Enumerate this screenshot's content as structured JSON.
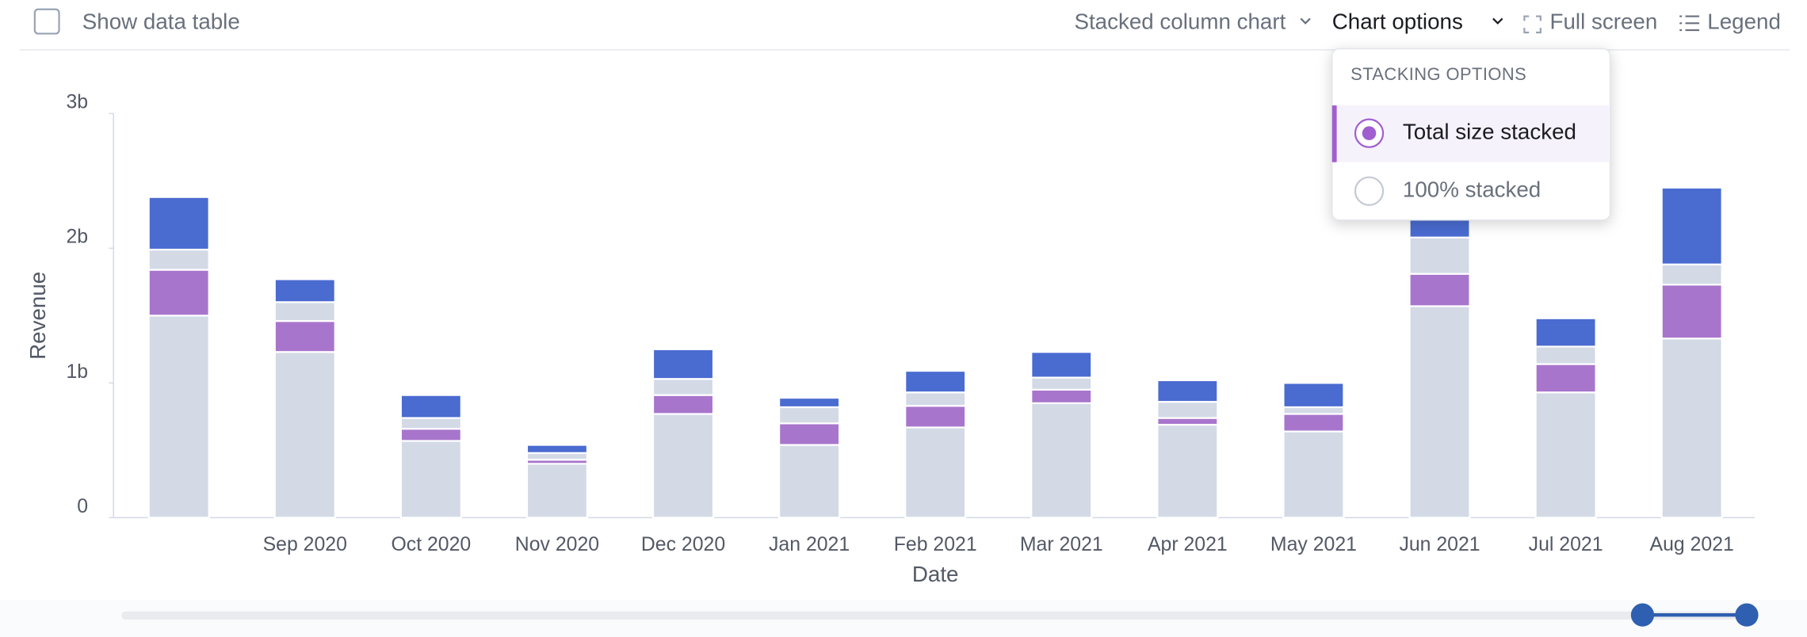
{
  "toolbar": {
    "show_data_table": "Show data table",
    "chart_type": "Stacked column chart",
    "chart_options": "Chart options",
    "full_screen": "Full screen",
    "legend": "Legend"
  },
  "menu": {
    "heading": "STACKING OPTIONS",
    "options": [
      "Total size stacked",
      "100% stacked"
    ]
  },
  "chart_data": {
    "type": "stacked-bar",
    "xlabel": "Date",
    "ylabel": "Revenue",
    "categories": [
      null,
      "Sep 2020",
      "Oct 2020",
      "Nov 2020",
      "Dec 2020",
      "Jan 2021",
      "Feb 2021",
      "Mar 2021",
      "Apr 2021",
      "May 2021",
      "Jun 2021",
      "Jul 2021",
      "Aug 2021"
    ],
    "series": [
      {
        "color": "#d3dae6",
        "values": [
          1.5,
          1.23,
          0.57,
          0.4,
          0.77,
          0.54,
          0.67,
          0.85,
          0.69,
          0.64,
          1.57,
          0.93,
          1.33
        ]
      },
      {
        "color": "#a875cc",
        "values": [
          0.34,
          0.23,
          0.09,
          0.03,
          0.14,
          0.16,
          0.16,
          0.1,
          0.05,
          0.13,
          0.24,
          0.21,
          0.4
        ]
      },
      {
        "color": "#d3dae6",
        "values": [
          0.15,
          0.14,
          0.08,
          0.05,
          0.12,
          0.12,
          0.1,
          0.09,
          0.12,
          0.05,
          0.27,
          0.13,
          0.15
        ]
      },
      {
        "color": "#4a6bd0",
        "values": [
          0.39,
          0.17,
          0.17,
          0.06,
          0.22,
          0.07,
          0.16,
          0.19,
          0.16,
          0.18,
          0.3,
          0.21,
          0.57
        ]
      }
    ],
    "ylim": [
      0,
      3
    ],
    "yticks": [
      {
        "value": 0,
        "label": "0"
      },
      {
        "value": 1,
        "label": "1b"
      },
      {
        "value": 2,
        "label": "2b"
      },
      {
        "value": 3,
        "label": "3b"
      }
    ]
  }
}
